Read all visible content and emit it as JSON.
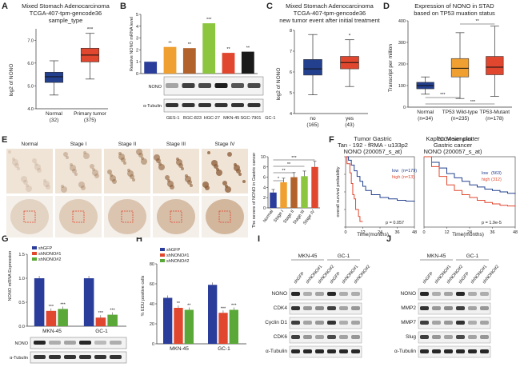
{
  "panel_letters": [
    "A",
    "B",
    "C",
    "D",
    "E",
    "F",
    "G",
    "H",
    "I",
    "J"
  ],
  "colors": {
    "blue": "#23408e",
    "red": "#e0472e",
    "orange": "#f0a030",
    "green": "#5aa837",
    "brown": "#b2622b",
    "lime": "#8cc63f",
    "black": "#1a1a1a",
    "navy": "#2b3d9a"
  },
  "chart_data": [
    {
      "panel": "A",
      "type": "box",
      "title_lines": [
        "Mixed Stomach Adenocarcinoma",
        "TCGA-407-tpm-gencode36",
        "sample_type"
      ],
      "ylabel": "log2 of NONO",
      "ylim": [
        4.0,
        7.5
      ],
      "yticks": [
        "4.0",
        "5.0",
        "6.0",
        "7.0"
      ],
      "groups": [
        {
          "name": "Normal",
          "n": "(32)",
          "color": "#23408e",
          "whisker_low": 4.6,
          "q1": 5.15,
          "median": 5.4,
          "q3": 5.6,
          "whisker_high": 6.1
        },
        {
          "name": "Primary tumor",
          "n": "(375)",
          "color": "#e0472e",
          "whisker_low": 5.3,
          "q1": 6.05,
          "median": 6.35,
          "q3": 6.65,
          "whisker_high": 7.3
        }
      ],
      "significance": "***"
    },
    {
      "panel": "B",
      "type": "bar",
      "ylabel": "Relative NONO mRNA level",
      "ylim": [
        0,
        5
      ],
      "yticks": [
        "0",
        "1",
        "2",
        "3",
        "4",
        "5"
      ],
      "categories": [
        "GES-1",
        "BGC-823",
        "HGC-27",
        "MKN-45",
        "SGC-7901",
        "GC-1"
      ],
      "values": [
        1.0,
        2.25,
        2.15,
        4.25,
        1.75,
        1.85
      ],
      "bar_colors": [
        "#2b3d9a",
        "#f0a030",
        "#b2622b",
        "#8cc63f",
        "#e0472e",
        "#1a1a1a"
      ],
      "significance": [
        "",
        "**",
        "**",
        "***",
        "**",
        "**"
      ],
      "blot_labels": [
        "NONO",
        "α-Tubulin"
      ]
    },
    {
      "panel": "C",
      "type": "box",
      "title_lines": [
        "Mixed Stomach Adenocarcinoma",
        "TCGA-407-tpm-gencode36",
        "new tumor event after initial treatment"
      ],
      "ylabel": "log2 of NONO",
      "ylim": [
        4.0,
        8.0
      ],
      "yticks": [
        "4",
        "5",
        "6",
        "7",
        "8"
      ],
      "groups": [
        {
          "name": "no",
          "n": "(165)",
          "color": "#23408e",
          "whisker_low": 4.9,
          "q1": 5.85,
          "median": 6.15,
          "q3": 6.6,
          "whisker_high": 7.8
        },
        {
          "name": "yes",
          "n": "(43)",
          "color": "#e0472e",
          "whisker_low": 5.3,
          "q1": 6.15,
          "median": 6.45,
          "q3": 6.75,
          "whisker_high": 7.55
        }
      ],
      "significance": "*"
    },
    {
      "panel": "D",
      "type": "box",
      "title_lines": [
        "Expression of NONO in STAD",
        "based on TP53 muation status"
      ],
      "ylabel": "Transcript per million",
      "ylim": [
        0,
        400
      ],
      "yticks": [
        "0",
        "100",
        "200",
        "300",
        "400"
      ],
      "groups": [
        {
          "name": "Normal",
          "n": "(n=34)",
          "color": "#23408e",
          "whisker_low": 60,
          "q1": 85,
          "median": 100,
          "q3": 115,
          "whisker_high": 140
        },
        {
          "name": "TP53 Wild-type",
          "n": "(n=235)",
          "color": "#f0a030",
          "whisker_low": 40,
          "q1": 140,
          "median": 180,
          "q3": 225,
          "whisker_high": 345
        },
        {
          "name": "TP53-Mutant",
          "n": "(n=178)",
          "color": "#e0472e",
          "whisker_low": 50,
          "q1": 150,
          "median": 185,
          "q3": 235,
          "whisker_high": 375
        }
      ],
      "xlabel": "TCGA samples",
      "significance": [
        "**",
        "***",
        "***"
      ]
    },
    {
      "panel": "E",
      "type": "bar",
      "columns": [
        "Normal",
        "Stage I",
        "Stage II",
        "Stage III",
        "Stage IV"
      ],
      "ylabel": "The severe of NONO in Gastric cancer",
      "ylim": [
        0,
        10
      ],
      "yticks": [
        "0",
        "2",
        "4",
        "6",
        "8",
        "10"
      ],
      "categories": [
        "Normal",
        "Stage I",
        "Stage II",
        "Stage III",
        "Stage IV"
      ],
      "values": [
        3.0,
        5.0,
        6.0,
        6.2,
        8.0
      ],
      "errors": [
        0.6,
        0.8,
        0.9,
        1.0,
        1.1
      ],
      "bar_colors": [
        "#2b3d9a",
        "#f0a030",
        "#b2622b",
        "#8cc63f",
        "#e0472e"
      ],
      "significance": [
        "*",
        "**",
        "**",
        "***"
      ]
    },
    {
      "panel": "F",
      "type": "line",
      "title_lines": [
        "Tumor Gastric",
        "Tan - 192 - fRMA - u133p2",
        "NONO (200057_s_at)"
      ],
      "ylabel": "overall survival probability",
      "xlabel": "Time(months)",
      "xlim": [
        0,
        48
      ],
      "ylim": [
        0,
        1
      ],
      "xticks": [
        "0",
        "12",
        "24",
        "36",
        "48"
      ],
      "series": [
        {
          "name": "low",
          "n": "(n=179)",
          "color": "#23408e",
          "x": [
            0,
            2,
            4,
            6,
            8,
            10,
            12,
            14,
            18,
            24,
            30,
            36,
            42,
            48
          ],
          "y": [
            1.0,
            0.95,
            0.88,
            0.8,
            0.72,
            0.65,
            0.58,
            0.52,
            0.46,
            0.42,
            0.4,
            0.38,
            0.37,
            0.36
          ]
        },
        {
          "name": "high",
          "n": "(n=13)",
          "color": "#e0472e",
          "x": [
            0,
            1,
            3,
            4,
            5,
            6,
            7,
            9,
            10,
            12
          ],
          "y": [
            1.0,
            0.9,
            0.77,
            0.62,
            0.46,
            0.4,
            0.25,
            0.15,
            0.08,
            0.08
          ]
        }
      ],
      "pvalue": "p = 0.057"
    },
    {
      "panel": "F2",
      "type": "line",
      "title_lines": [
        "Kaplan Meier plotter",
        "Gastric cancer",
        "NONO (200057_s_at)"
      ],
      "xlabel": "Time(months)",
      "xlim": [
        0,
        48
      ],
      "ylim": [
        0,
        1
      ],
      "xticks": [
        "0",
        "12",
        "24",
        "36",
        "48"
      ],
      "series": [
        {
          "name": "low",
          "n": "(563)",
          "color": "#23408e",
          "x": [
            0,
            4,
            8,
            12,
            16,
            20,
            24,
            28,
            32,
            36,
            40,
            44,
            48
          ],
          "y": [
            1.0,
            0.92,
            0.84,
            0.76,
            0.7,
            0.65,
            0.6,
            0.57,
            0.54,
            0.52,
            0.5,
            0.48,
            0.47
          ]
        },
        {
          "name": "high",
          "n": "(312)",
          "color": "#e0472e",
          "x": [
            0,
            4,
            8,
            12,
            16,
            20,
            24,
            28,
            32,
            36,
            40,
            44,
            48
          ],
          "y": [
            1.0,
            0.86,
            0.72,
            0.6,
            0.52,
            0.46,
            0.42,
            0.38,
            0.35,
            0.33,
            0.31,
            0.3,
            0.29
          ]
        }
      ],
      "pvalue": "p = 1.9e-5"
    },
    {
      "panel": "G",
      "type": "bar",
      "ylabel": "NONO mRNA Expression",
      "ylim": [
        0,
        1.5
      ],
      "yticks": [
        "0.0",
        "0.5",
        "1.0",
        "1.5"
      ],
      "categories": [
        "MKN-45",
        "GC-1"
      ],
      "series": [
        {
          "name": "shGFP",
          "color": "#2b3d9a",
          "values": [
            1.0,
            1.0
          ]
        },
        {
          "name": "shNONO#1",
          "color": "#e0472e",
          "values": [
            0.32,
            0.18
          ]
        },
        {
          "name": "shNONO#2",
          "color": "#5aa837",
          "values": [
            0.36,
            0.24
          ]
        }
      ],
      "significance": [
        "",
        "***",
        "***",
        "",
        "***",
        "***"
      ],
      "blot_labels": [
        "NONO",
        "α-Tubulin"
      ]
    },
    {
      "panel": "H",
      "type": "bar",
      "ylabel": "% EDU positive cells",
      "ylim": [
        0,
        80
      ],
      "yticks": [
        "0",
        "20",
        "40",
        "60",
        "80"
      ],
      "categories": [
        "MKN-45",
        "GC-1"
      ],
      "series": [
        {
          "name": "shGFP",
          "color": "#2b3d9a",
          "values": [
            46,
            59
          ]
        },
        {
          "name": "shNONO#1",
          "color": "#e0472e",
          "values": [
            36,
            31
          ]
        },
        {
          "name": "shNONO#2",
          "color": "#5aa837",
          "values": [
            34,
            34
          ]
        }
      ],
      "significance": [
        "",
        "**",
        "**",
        "",
        "***",
        "***"
      ]
    }
  ],
  "blots": {
    "I": {
      "groups": [
        "MKN-45",
        "GC-1"
      ],
      "lanes": [
        "shGFP",
        "shNONO#1",
        "shNONO#2",
        "shGFP",
        "shNONO#1",
        "shNONO#2"
      ],
      "rows": [
        "NONO",
        "CDK4",
        "Cyclin D1",
        "CDK6",
        "α-Tubulin"
      ]
    },
    "J": {
      "groups": [
        "MKN-45",
        "GC-1"
      ],
      "lanes": [
        "shGFP",
        "shNONO#1",
        "shNONO#2",
        "shGFP",
        "shNONO#1",
        "shNONO#2"
      ],
      "rows": [
        "NONO",
        "MMP2",
        "MMP7",
        "Slug",
        "α-Tubulin"
      ]
    }
  }
}
